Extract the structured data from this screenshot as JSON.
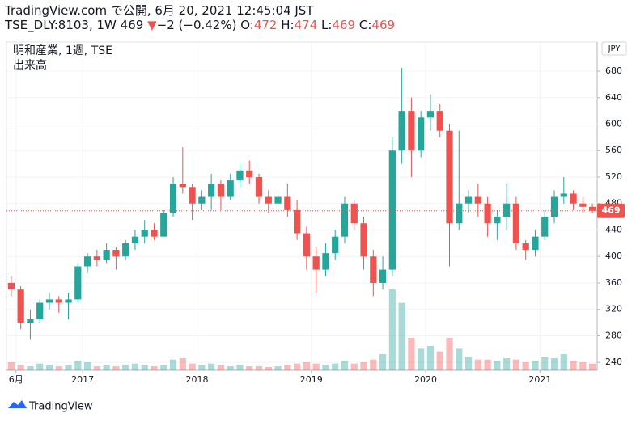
{
  "header": {
    "published": "TradingView.com で公開, 6月 20, 2021 12:45:04 JST",
    "symbol": "TSE_DLY:8103, 1W",
    "price": 469,
    "arrow": "▼",
    "change": "−2 (−0.42%)",
    "o_label": "O:",
    "o": 472,
    "h_label": "H:",
    "h": 474,
    "l_label": "L:",
    "l": 469,
    "c_label": "C:",
    "c": 469
  },
  "legend": [
    "明和産業, 1週, TSE",
    "出来高"
  ],
  "currency": "JPY",
  "footer": "TradingView",
  "chart_data": {
    "type": "candlestick",
    "x": [
      "2016-05",
      "2016-06",
      "2016-07",
      "2016-08",
      "2016-09",
      "2016-10",
      "2016-11",
      "2016-12",
      "2017-01",
      "2017-02",
      "2017-03",
      "2017-04",
      "2017-05",
      "2017-06",
      "2017-07",
      "2017-08",
      "2017-09",
      "2017-10",
      "2017-11",
      "2017-12",
      "2018-01",
      "2018-02",
      "2018-03",
      "2018-04",
      "2018-05",
      "2018-06",
      "2018-07",
      "2018-08",
      "2018-09",
      "2018-10",
      "2018-11",
      "2018-12",
      "2019-01",
      "2019-02",
      "2019-03",
      "2019-04",
      "2019-05",
      "2019-06",
      "2019-07",
      "2019-08",
      "2019-09",
      "2019-10",
      "2019-11",
      "2019-12",
      "2020-01",
      "2020-02",
      "2020-03",
      "2020-04",
      "2020-05",
      "2020-06",
      "2020-07",
      "2020-08",
      "2020-09",
      "2020-10",
      "2020-11",
      "2020-12",
      "2021-01",
      "2021-02",
      "2021-03",
      "2021-04",
      "2021-05",
      "2021-06"
    ],
    "open": [
      360,
      350,
      300,
      305,
      330,
      335,
      330,
      335,
      385,
      400,
      395,
      410,
      400,
      420,
      430,
      440,
      430,
      465,
      510,
      505,
      480,
      490,
      510,
      490,
      515,
      530,
      520,
      490,
      480,
      490,
      470,
      435,
      400,
      380,
      405,
      430,
      480,
      450,
      400,
      360,
      380,
      560,
      620,
      560,
      610,
      620,
      590,
      450,
      480,
      490,
      480,
      450,
      460,
      480,
      420,
      410,
      430,
      460,
      490,
      495,
      480,
      475
    ],
    "high": [
      370,
      355,
      320,
      335,
      345,
      340,
      345,
      390,
      405,
      410,
      420,
      415,
      425,
      440,
      455,
      450,
      470,
      520,
      565,
      510,
      500,
      525,
      515,
      525,
      540,
      545,
      525,
      500,
      500,
      510,
      485,
      445,
      415,
      420,
      440,
      490,
      485,
      460,
      410,
      400,
      580,
      685,
      640,
      620,
      645,
      630,
      600,
      590,
      500,
      510,
      490,
      470,
      510,
      490,
      425,
      440,
      470,
      500,
      520,
      500,
      490,
      480
    ],
    "low": [
      340,
      290,
      275,
      300,
      320,
      315,
      305,
      330,
      375,
      385,
      390,
      380,
      395,
      410,
      420,
      425,
      430,
      460,
      495,
      455,
      470,
      470,
      470,
      485,
      505,
      510,
      480,
      465,
      470,
      460,
      425,
      380,
      345,
      370,
      395,
      420,
      440,
      380,
      340,
      350,
      370,
      540,
      520,
      550,
      590,
      580,
      385,
      440,
      465,
      460,
      430,
      425,
      440,
      410,
      395,
      400,
      425,
      450,
      480,
      470,
      465,
      465
    ],
    "close": [
      350,
      300,
      305,
      330,
      335,
      330,
      335,
      385,
      400,
      395,
      410,
      400,
      420,
      430,
      440,
      430,
      465,
      510,
      505,
      480,
      490,
      510,
      490,
      515,
      530,
      520,
      490,
      480,
      490,
      470,
      435,
      400,
      380,
      405,
      430,
      480,
      450,
      400,
      360,
      380,
      560,
      620,
      560,
      610,
      620,
      590,
      450,
      480,
      490,
      480,
      450,
      460,
      480,
      420,
      410,
      430,
      460,
      490,
      495,
      480,
      475,
      469
    ],
    "volume": [
      30000,
      20000,
      15000,
      25000,
      20000,
      15000,
      20000,
      35000,
      30000,
      15000,
      20000,
      15000,
      20000,
      25000,
      20000,
      15000,
      20000,
      40000,
      45000,
      25000,
      20000,
      25000,
      20000,
      15000,
      20000,
      15000,
      15000,
      12000,
      15000,
      20000,
      25000,
      30000,
      25000,
      20000,
      25000,
      35000,
      25000,
      30000,
      40000,
      60000,
      300000,
      250000,
      120000,
      80000,
      90000,
      70000,
      120000,
      80000,
      50000,
      40000,
      40000,
      35000,
      45000,
      40000,
      30000,
      35000,
      50000,
      45000,
      60000,
      35000,
      30000,
      25000
    ],
    "up_color": "#26a69a",
    "down_color": "#ef5350",
    "last_price": 469,
    "xlim": [
      "2016-05",
      "2021-07"
    ],
    "xticks": [
      {
        "value": "2016-06",
        "label": "6月"
      },
      {
        "value": "2017-01",
        "label": "2017"
      },
      {
        "value": "2018-01",
        "label": "2018"
      },
      {
        "value": "2019-01",
        "label": "2019"
      },
      {
        "value": "2020-01",
        "label": "2020"
      },
      {
        "value": "2021-01",
        "label": "2021"
      }
    ],
    "ylim": [
      228,
      724
    ],
    "yticks": [
      240,
      280,
      320,
      360,
      400,
      440,
      480,
      520,
      560,
      600,
      640,
      680
    ],
    "grid": true
  }
}
